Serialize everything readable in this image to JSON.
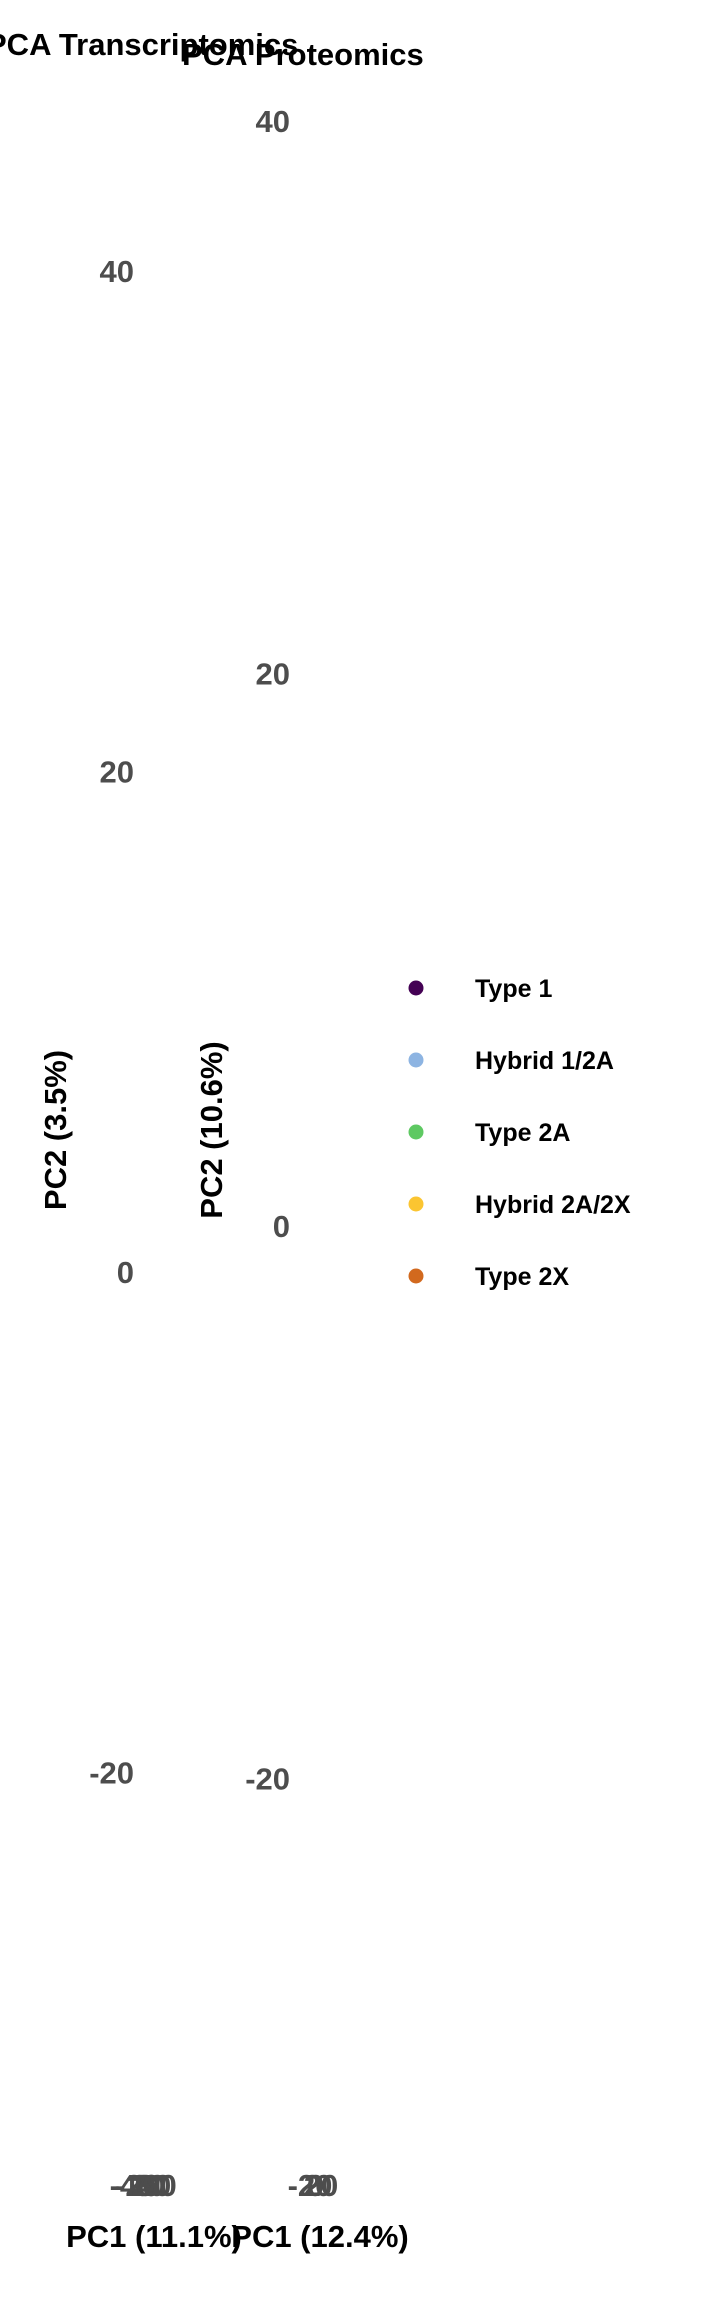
{
  "chart_data": [
    {
      "type": "scatter",
      "title": "PCA Transcriptomics",
      "xlabel": "PC1 (11.1%)",
      "ylabel": "PC2 (3.5%)",
      "ylim": [
        -30,
        50
      ],
      "y_ticks": [
        "40",
        "20",
        "0",
        "-20"
      ],
      "x_ticks": [
        "-40",
        "-20",
        "0",
        "20",
        "40",
        "60"
      ],
      "series": []
    },
    {
      "type": "scatter",
      "title": "PCA Proteomics",
      "xlabel": "PC1 (12.4%)",
      "ylabel": "PC2 (10.6%)",
      "ylim": [
        -30,
        42
      ],
      "y_ticks": [
        "40",
        "20",
        "0",
        "-20"
      ],
      "x_ticks": [
        "-20",
        "0",
        "20"
      ],
      "series": []
    }
  ],
  "legend": {
    "placement": "right",
    "items": [
      {
        "label": "Type 1",
        "color": "#440154"
      },
      {
        "label": "Hybrid 1/2A",
        "color": "#8db4e2"
      },
      {
        "label": "Type 2A",
        "color": "#5ec962"
      },
      {
        "label": "Hybrid 2A/2X",
        "color": "#fbc531"
      },
      {
        "label": "Type 2X",
        "color": "#d2691e"
      }
    ]
  }
}
